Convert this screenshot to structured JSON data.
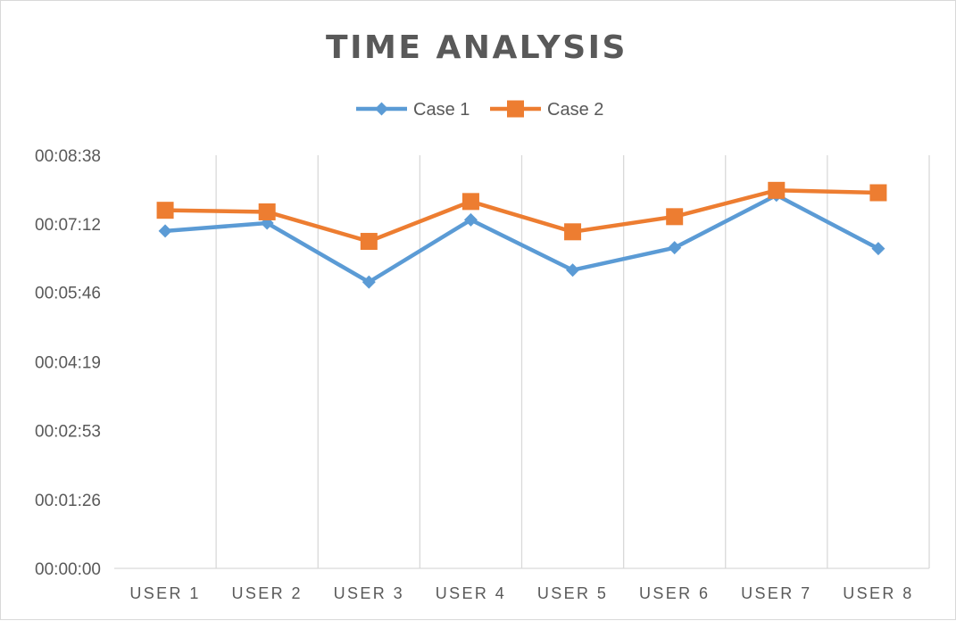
{
  "chart_data": {
    "type": "line",
    "title": "TIME ANALYSIS",
    "xlabel": "",
    "ylabel": "",
    "categories": [
      "USER 1",
      "USER 2",
      "USER 3",
      "USER 4",
      "USER 5",
      "USER 6",
      "USER 7",
      "USER 8"
    ],
    "series": [
      {
        "name": "Case 1",
        "color": "#5B9BD5",
        "marker": "diamond",
        "values": [
          "00:07:03",
          "00:07:13",
          "00:05:59",
          "00:07:17",
          "00:06:14",
          "00:06:42",
          "00:07:48",
          "00:06:41"
        ]
      },
      {
        "name": "Case 2",
        "color": "#ED7D31",
        "marker": "square",
        "values": [
          "00:07:29",
          "00:07:27",
          "00:06:50",
          "00:07:40",
          "00:07:02",
          "00:07:21",
          "00:07:54",
          "00:07:51"
        ]
      }
    ],
    "yticks": [
      "00:00:00",
      "00:01:26",
      "00:02:53",
      "00:04:19",
      "00:05:46",
      "00:07:12",
      "00:08:38"
    ],
    "ylim": [
      "00:00:00",
      "00:08:38"
    ],
    "grid": "vertical",
    "legend_position": "top"
  }
}
